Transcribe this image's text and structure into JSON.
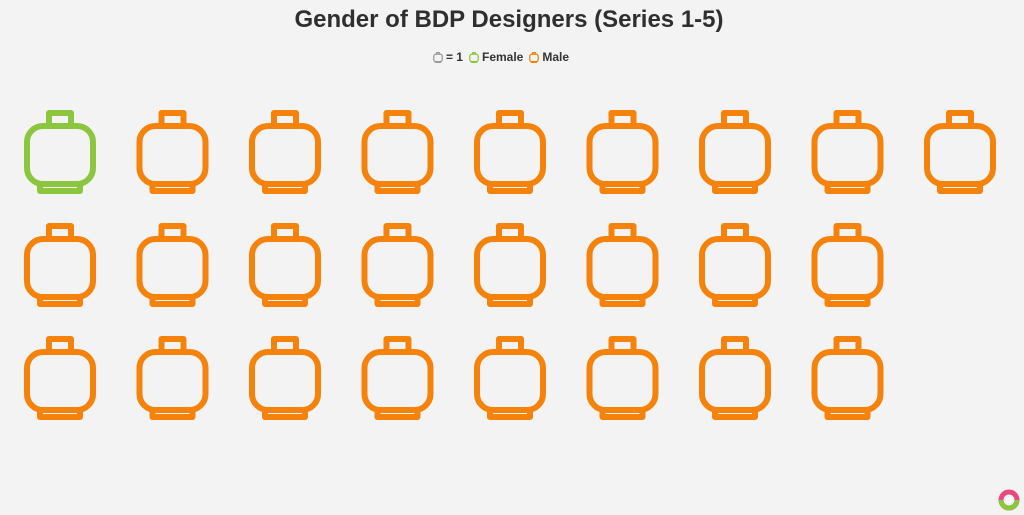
{
  "chart_data": {
    "type": "pictogram",
    "title": "Gender of BDP Designers (Series 1-5)",
    "unit_label": "= 1",
    "series": [
      {
        "name": "Female",
        "value": 1,
        "color": "#8cc63f"
      },
      {
        "name": "Male",
        "value": 24,
        "color": "#f5820a"
      }
    ],
    "rows": [
      9,
      8,
      8
    ],
    "legend_position": "top-center",
    "icon": "lego-head-icon"
  },
  "colors": {
    "background": "#f3f3f3",
    "neutral_icon": "#9a9a9a"
  },
  "branding": {
    "logo_icon": "donut-logo-icon"
  }
}
